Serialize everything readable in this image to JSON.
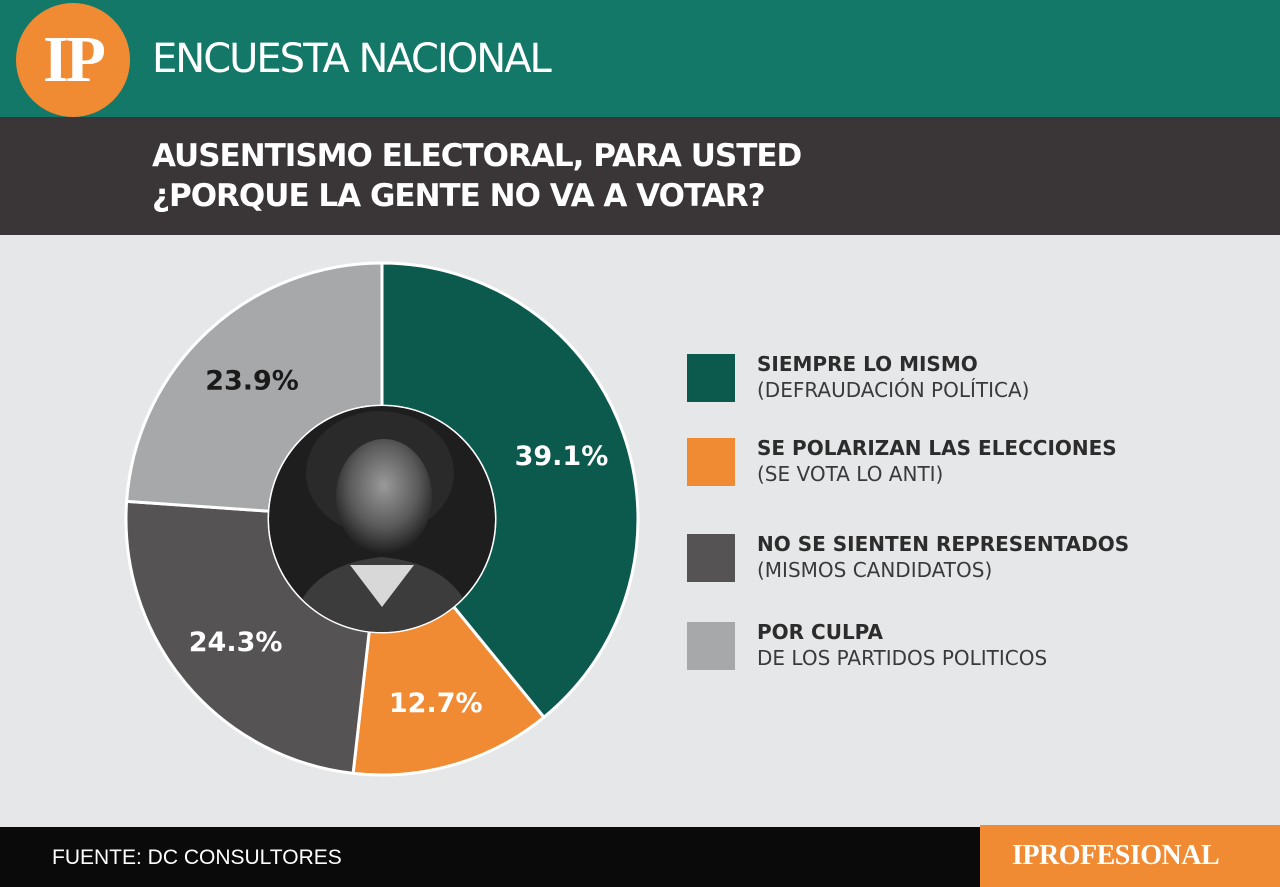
{
  "header": {
    "logo_text": "IP",
    "section_title": "ENCUESTA NACIONAL",
    "question_line1": "AUSENTISMO ELECTORAL, PARA USTED",
    "question_line2": "¿PORQUE LA GENTE NO VA A VOTAR?"
  },
  "colors": {
    "header_green": "#137868",
    "header_dark": "#3a3536",
    "background": "#e6e7e9",
    "accent_orange": "#f18b33"
  },
  "chart_data": {
    "type": "pie",
    "style": "donut",
    "center_image": "photo-portrait",
    "slices": [
      {
        "label": "SIEMPRE LO MISMO",
        "sublabel": "(DEFRAUDACIÓN POLÍTICA)",
        "value": 39.1,
        "value_label": "39.1%",
        "color": "#0c5a4e",
        "label_color": "#ffffff"
      },
      {
        "label": "SE POLARIZAN LAS ELECCIONES",
        "sublabel": "(SE VOTA LO ANTI)",
        "value": 12.7,
        "value_label": "12.7%",
        "color": "#f18b33",
        "label_color": "#ffffff"
      },
      {
        "label": "NO SE SIENTEN REPRESENTADOS",
        "sublabel": "(MISMOS CANDIDATOS)",
        "value": 24.3,
        "value_label": "24.3%",
        "color": "#555354",
        "label_color": "#ffffff"
      },
      {
        "label": "POR CULPA",
        "sublabel": "DE LOS PARTIDOS POLITICOS",
        "value": 23.9,
        "value_label": "23.9%",
        "color": "#a7a8aa",
        "label_color": "#1a1a1a"
      }
    ],
    "legend_position": "right"
  },
  "footer": {
    "source": "FUENTE: DC CONSULTORES",
    "brand": "IPROFESIONAL"
  }
}
